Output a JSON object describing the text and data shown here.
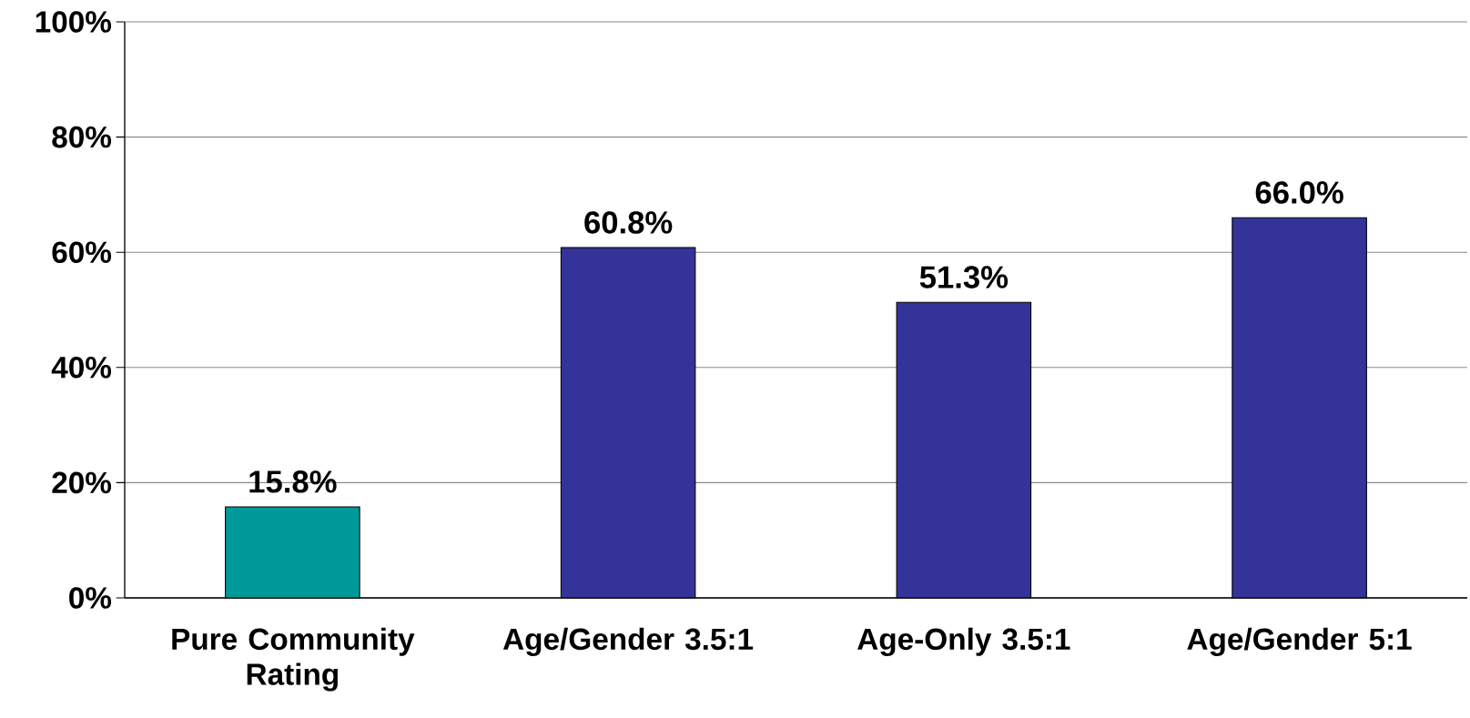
{
  "chart_data": {
    "type": "bar",
    "categories": [
      "Pure Community Rating",
      "Age/Gender 3.5:1",
      "Age-Only 3.5:1",
      "Age/Gender 5:1"
    ],
    "values": [
      15.8,
      60.8,
      51.3,
      66.0
    ],
    "colors": [
      "#009999",
      "#333399",
      "#333399",
      "#333399"
    ],
    "value_labels": [
      "15.8%",
      "60.8%",
      "51.3%",
      "66.0%"
    ],
    "ylim": [
      0,
      100
    ],
    "yticks": [
      {
        "value": 0,
        "label": "0%"
      },
      {
        "value": 20,
        "label": "20%"
      },
      {
        "value": 40,
        "label": "40%"
      },
      {
        "value": 60,
        "label": "60%"
      },
      {
        "value": 80,
        "label": "80%"
      },
      {
        "value": 100,
        "label": "100%"
      }
    ],
    "grid": "y"
  }
}
